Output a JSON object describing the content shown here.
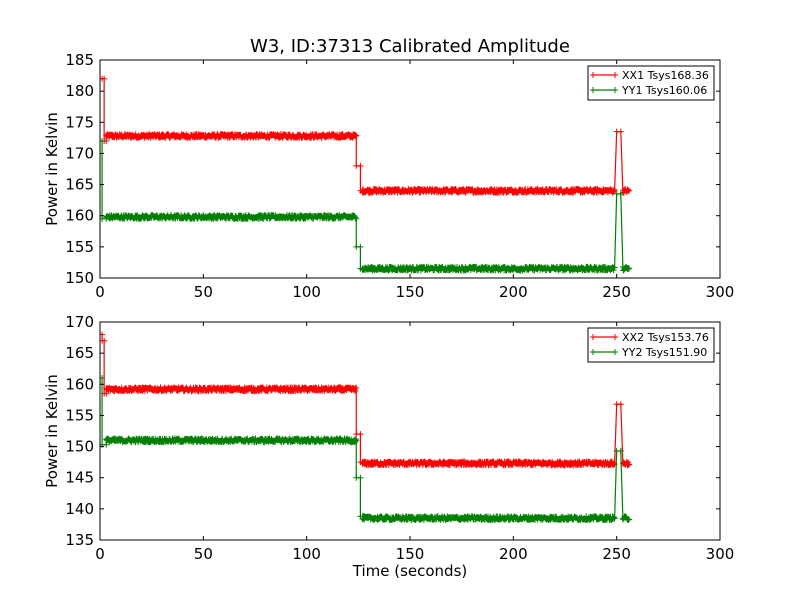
{
  "figure": {
    "title": "W3, ID:37313 Calibrated Amplitude"
  },
  "chart_data": [
    {
      "type": "line",
      "title": "W3, ID:37313 Calibrated Amplitude",
      "xlabel": "",
      "ylabel": "Power in Kelvin",
      "xlim": [
        0,
        300
      ],
      "ylim": [
        150,
        185
      ],
      "xticks": [
        "0",
        "50",
        "100",
        "150",
        "200",
        "250",
        "300"
      ],
      "yticks": [
        "150",
        "155",
        "160",
        "165",
        "170",
        "175",
        "180",
        "185"
      ],
      "grid": false,
      "legend_position": "top-right",
      "series": [
        {
          "name": "XX1 Tsys168.36",
          "color": "#ff0000",
          "marker": "+",
          "segments": [
            {
              "x_start": 0,
              "x_end": 1,
              "value": 182
            },
            {
              "x_start": 1,
              "x_end": 2,
              "value": 182
            },
            {
              "x_start": 2,
              "x_end": 3,
              "value": 172
            },
            {
              "x_start": 3,
              "x_end": 124,
              "value": 172.8
            },
            {
              "x_start": 124,
              "x_end": 126,
              "value": 168
            },
            {
              "x_start": 126,
              "x_end": 127,
              "value": 164
            },
            {
              "x_start": 127,
              "x_end": 249,
              "value": 164
            },
            {
              "x_start": 250,
              "x_end": 252,
              "value": 173.5
            },
            {
              "x_start": 253,
              "x_end": 256,
              "value": 164
            }
          ]
        },
        {
          "name": "YY1 Tsys160.06",
          "color": "#008000",
          "marker": "+",
          "segments": [
            {
              "x_start": 0,
              "x_end": 1,
              "value": 172
            },
            {
              "x_start": 1,
              "x_end": 3,
              "value": 159.5
            },
            {
              "x_start": 3,
              "x_end": 124,
              "value": 159.8
            },
            {
              "x_start": 124,
              "x_end": 126,
              "value": 155
            },
            {
              "x_start": 126,
              "x_end": 127,
              "value": 151.5
            },
            {
              "x_start": 127,
              "x_end": 249,
              "value": 151.5
            },
            {
              "x_start": 250,
              "x_end": 252,
              "value": 163.5
            },
            {
              "x_start": 253,
              "x_end": 256,
              "value": 151.5
            }
          ]
        }
      ]
    },
    {
      "type": "line",
      "title": "",
      "xlabel": "Time (seconds)",
      "ylabel": "Power in Kelvin",
      "xlim": [
        0,
        300
      ],
      "ylim": [
        135,
        170
      ],
      "xticks": [
        "0",
        "50",
        "100",
        "150",
        "200",
        "250",
        "300"
      ],
      "yticks": [
        "135",
        "140",
        "145",
        "150",
        "155",
        "160",
        "165",
        "170"
      ],
      "grid": false,
      "legend_position": "top-right",
      "series": [
        {
          "name": "XX2 Tsys153.76",
          "color": "#ff0000",
          "marker": "+",
          "segments": [
            {
              "x_start": 0,
              "x_end": 1,
              "value": 168
            },
            {
              "x_start": 1,
              "x_end": 2,
              "value": 167
            },
            {
              "x_start": 2,
              "x_end": 3,
              "value": 158.5
            },
            {
              "x_start": 3,
              "x_end": 124,
              "value": 159.2
            },
            {
              "x_start": 124,
              "x_end": 126,
              "value": 152
            },
            {
              "x_start": 126,
              "x_end": 127,
              "value": 147.5
            },
            {
              "x_start": 127,
              "x_end": 249,
              "value": 147.3
            },
            {
              "x_start": 250,
              "x_end": 252,
              "value": 156.8
            },
            {
              "x_start": 253,
              "x_end": 256,
              "value": 147.3
            }
          ]
        },
        {
          "name": "YY2 Tsys151.90",
          "color": "#008000",
          "marker": "+",
          "segments": [
            {
              "x_start": 0,
              "x_end": 1,
              "value": 161
            },
            {
              "x_start": 1,
              "x_end": 3,
              "value": 150.3
            },
            {
              "x_start": 3,
              "x_end": 124,
              "value": 151
            },
            {
              "x_start": 124,
              "x_end": 126,
              "value": 145
            },
            {
              "x_start": 126,
              "x_end": 127,
              "value": 138.8
            },
            {
              "x_start": 127,
              "x_end": 249,
              "value": 138.5
            },
            {
              "x_start": 250,
              "x_end": 252,
              "value": 149.3
            },
            {
              "x_start": 253,
              "x_end": 256,
              "value": 138.5
            }
          ]
        }
      ]
    }
  ]
}
